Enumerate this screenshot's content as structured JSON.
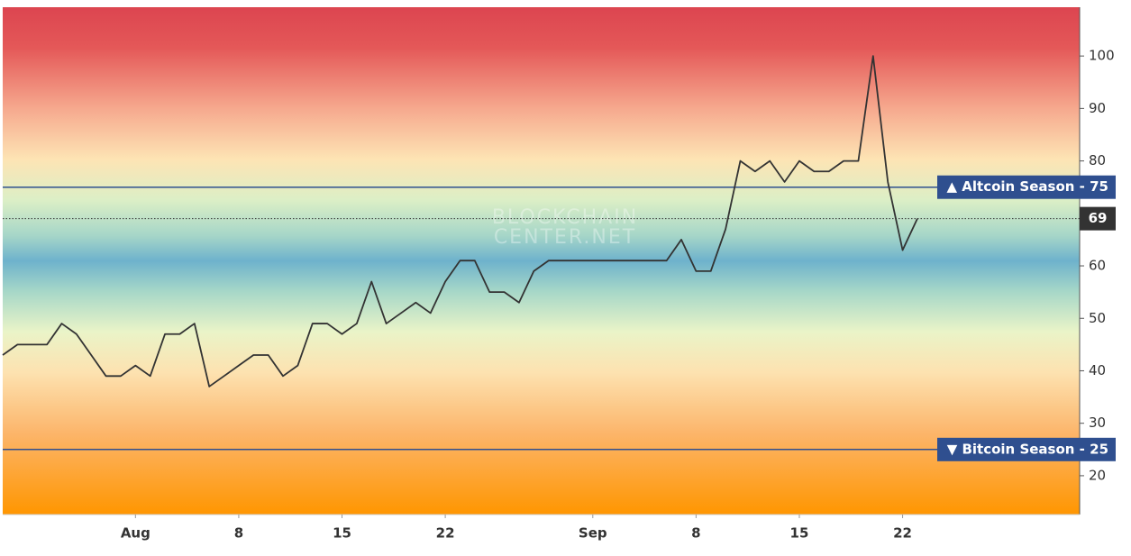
{
  "chart_data": {
    "type": "line",
    "watermark": [
      "BLOCKCHAIN",
      "CENTER.NET"
    ],
    "x": [
      "07-23",
      "07-24",
      "07-25",
      "07-26",
      "07-27",
      "07-28",
      "07-29",
      "07-30",
      "07-31",
      "08-01",
      "08-02",
      "08-03",
      "08-04",
      "08-05",
      "08-06",
      "08-07",
      "08-08",
      "08-09",
      "08-10",
      "08-11",
      "08-12",
      "08-13",
      "08-14",
      "08-15",
      "08-16",
      "08-17",
      "08-18",
      "08-19",
      "08-20",
      "08-21",
      "08-22",
      "08-23",
      "08-24",
      "08-25",
      "08-26",
      "08-27",
      "08-28",
      "08-29",
      "08-30",
      "08-31",
      "09-01",
      "09-02",
      "09-03",
      "09-04",
      "09-05",
      "09-06",
      "09-07",
      "09-08",
      "09-09",
      "09-10",
      "09-11",
      "09-12",
      "09-13",
      "09-14",
      "09-15",
      "09-16",
      "09-17",
      "09-18",
      "09-19",
      "09-20",
      "09-21",
      "09-22",
      "09-23"
    ],
    "series": [
      {
        "color": "#333333",
        "values": [
          43,
          45,
          45,
          45,
          49,
          47,
          43,
          39,
          39,
          41,
          39,
          47,
          47,
          49,
          37,
          39,
          41,
          43,
          43,
          39,
          41,
          49,
          49,
          47,
          49,
          57,
          49,
          51,
          53,
          51,
          57,
          61,
          61,
          55,
          55,
          53,
          59,
          61,
          61,
          61,
          61,
          61,
          61,
          61,
          61,
          61,
          65,
          59,
          59,
          67,
          80,
          78,
          80,
          76,
          80,
          78,
          78,
          80,
          80,
          100,
          76,
          63,
          69
        ]
      }
    ],
    "xlim": [
      "07-23",
      "10-04"
    ],
    "xticks": [
      {
        "value": "08-01",
        "label": "Aug"
      },
      {
        "value": "08-08",
        "label": "8"
      },
      {
        "value": "08-15",
        "label": "15"
      },
      {
        "value": "08-22",
        "label": "22"
      },
      {
        "value": "09-01",
        "label": "Sep"
      },
      {
        "value": "09-08",
        "label": "8"
      },
      {
        "value": "09-15",
        "label": "15"
      },
      {
        "value": "09-22",
        "label": "22"
      }
    ],
    "ylim": [
      12.6,
      109.3
    ],
    "yticks": [
      20,
      30,
      40,
      50,
      60,
      70,
      80,
      90,
      100
    ],
    "thresholds": [
      {
        "label": "▲ Altcoin Season - 75",
        "value": 75,
        "color": "#2f4f8f"
      },
      {
        "label": "▼ Bitcoin Season - 25",
        "value": 25,
        "color": "#2f4f8f"
      }
    ]
  }
}
